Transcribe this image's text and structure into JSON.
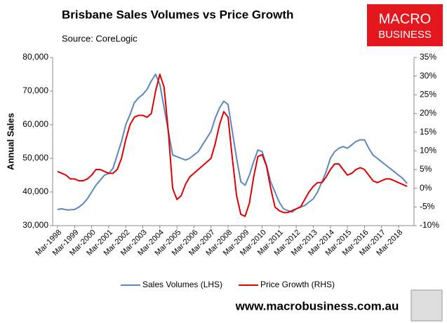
{
  "logo": [
    "MACRO",
    "BUSINESS"
  ],
  "footer": "www.macrobusiness.com.au",
  "chart_data": {
    "type": "line",
    "title": "Brisbane Sales Volumes vs Price Growth",
    "subtitle": "Source: CoreLogic",
    "y_label": "Annual Sales",
    "categories": [
      "Mar-1998",
      null,
      null,
      null,
      "Mar-1999",
      null,
      null,
      null,
      "Mar-2000",
      null,
      null,
      null,
      "Mar-2001",
      null,
      null,
      null,
      "Mar-2002",
      null,
      null,
      null,
      "Mar-2003",
      null,
      null,
      null,
      "Mar-2004",
      null,
      null,
      null,
      "Mar-2005",
      null,
      null,
      null,
      "Mar-2006",
      null,
      null,
      null,
      "Mar-2007",
      null,
      null,
      null,
      "Mar-2008",
      null,
      null,
      null,
      "Mar-2009",
      null,
      null,
      null,
      "Mar-2010",
      null,
      null,
      null,
      "Mar-2011",
      null,
      null,
      null,
      "Mar-2012",
      null,
      null,
      null,
      "Mar-2013",
      null,
      null,
      null,
      "Mar-2014",
      null,
      null,
      null,
      "Mar-2015",
      null,
      null,
      null,
      "Mar-2016",
      null,
      null,
      null,
      "Mar-2017",
      null,
      null,
      null,
      "Mar-2018",
      null,
      null
    ],
    "series": [
      {
        "name": "Sales Volumes (LHS)",
        "color": "#5b86c0",
        "values": [
          34800,
          35000,
          34700,
          34700,
          34800,
          35500,
          36500,
          38000,
          40000,
          42000,
          43500,
          45000,
          45500,
          47000,
          51000,
          55000,
          60000,
          63000,
          66500,
          68000,
          69000,
          70500,
          73000,
          75000,
          72000,
          65000,
          58000,
          51000,
          50500,
          50000,
          49500,
          50000,
          51000,
          52000,
          54000,
          56000,
          58000,
          62000,
          65000,
          67000,
          66000,
          58000,
          50000,
          43000,
          42000,
          45000,
          49000,
          52500,
          52000,
          48000,
          43000,
          40000,
          37000,
          35000,
          34500,
          34000,
          35000,
          35500,
          36000,
          37000,
          38000,
          40000,
          43000,
          46000,
          50000,
          52000,
          53000,
          53500,
          53000,
          54000,
          55000,
          55500,
          55500,
          53000,
          51000,
          50000,
          49000,
          48000,
          47000,
          46000,
          45000,
          44000,
          42500
        ]
      },
      {
        "name": "Price Growth (RHS)",
        "color": "#e00000",
        "axis": "y2",
        "values": [
          4.5,
          4,
          3.5,
          2.5,
          2.5,
          2,
          2,
          2.5,
          3.5,
          5,
          5,
          4.5,
          4,
          4,
          5,
          8,
          13,
          17,
          19,
          19.5,
          19.5,
          19,
          20,
          26,
          30.5,
          27,
          15,
          0,
          -3,
          -2,
          1,
          3,
          4,
          5,
          6,
          7,
          8,
          12,
          17,
          20.5,
          19,
          8,
          -2,
          -7,
          -7.5,
          -4,
          3,
          8.5,
          9,
          6,
          0,
          -5,
          -6,
          -6.5,
          -6.5,
          -6,
          -5.5,
          -5,
          -3,
          -1,
          0.5,
          1.5,
          1.5,
          3,
          5,
          6.5,
          6.5,
          5,
          3.5,
          4,
          5,
          5.5,
          5,
          3.5,
          2,
          1.5,
          2,
          2.5,
          2.5,
          2,
          1.5,
          1,
          0.5
        ]
      }
    ],
    "ylim": [
      30000,
      80000
    ],
    "yticks": [
      {
        "value": 30000,
        "label": "30,000"
      },
      {
        "value": 40000,
        "label": "40,000"
      },
      {
        "value": 50000,
        "label": "50,000"
      },
      {
        "value": 60000,
        "label": "60,000"
      },
      {
        "value": 70000,
        "label": "70,000"
      },
      {
        "value": 80000,
        "label": "80,000"
      }
    ],
    "y2lim": [
      -10,
      35
    ],
    "y2ticks": [
      {
        "value": -10,
        "label": "-10%"
      },
      {
        "value": -5,
        "label": "-5%"
      },
      {
        "value": 0,
        "label": "0%"
      },
      {
        "value": 5,
        "label": "5%"
      },
      {
        "value": 10,
        "label": "10%"
      },
      {
        "value": 15,
        "label": "15%"
      },
      {
        "value": 20,
        "label": "20%"
      },
      {
        "value": 25,
        "label": "25%"
      },
      {
        "value": 30,
        "label": "30%"
      },
      {
        "value": 35,
        "label": "35%"
      }
    ],
    "grid": false,
    "legend": "bottom"
  }
}
